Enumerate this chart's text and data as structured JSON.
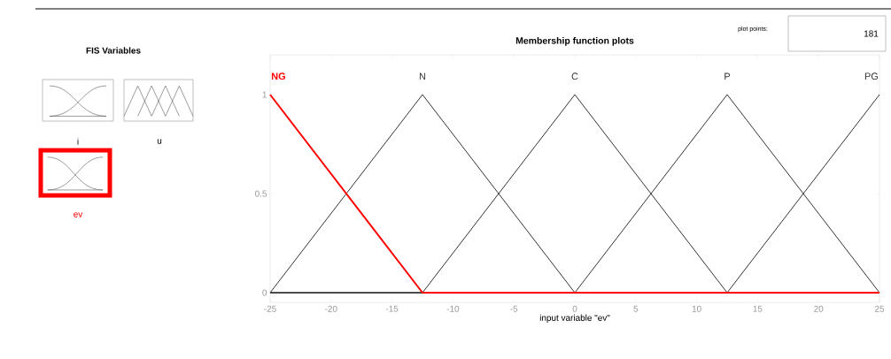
{
  "chart_data": {
    "type": "line",
    "title": "Membership function plots",
    "xlabel": "input variable \"ev\"",
    "series": [
      {
        "name": "NG",
        "color": "#ff0000",
        "x": [
          -25,
          -12.5,
          25
        ],
        "values": [
          1,
          0,
          0
        ]
      },
      {
        "name": "N",
        "color": "#333333",
        "x": [
          -25,
          -12.5,
          0,
          25
        ],
        "values": [
          0,
          1,
          0,
          0
        ]
      },
      {
        "name": "C",
        "color": "#333333",
        "x": [
          -25,
          -12.5,
          0,
          12.5,
          25
        ],
        "values": [
          0,
          0,
          1,
          0,
          0
        ]
      },
      {
        "name": "P",
        "color": "#333333",
        "x": [
          -25,
          0,
          12.5,
          25
        ],
        "values": [
          0,
          0,
          1,
          0
        ]
      },
      {
        "name": "PG",
        "color": "#333333",
        "x": [
          -25,
          12.5,
          25
        ],
        "values": [
          0,
          0,
          1
        ]
      }
    ],
    "xlim": [
      -25,
      25
    ],
    "xticks": [
      -25,
      -20,
      -15,
      -10,
      -5,
      0,
      5,
      10,
      15,
      20,
      25
    ],
    "ylim": [
      -0.05,
      1.2
    ],
    "yticks": [
      0,
      0.5,
      1
    ],
    "grid": false,
    "marker": "none",
    "line_style": "solid",
    "annotations": [
      "FIS Variables",
      "i",
      "u",
      "ev",
      "plot points:",
      "181"
    ]
  }
}
